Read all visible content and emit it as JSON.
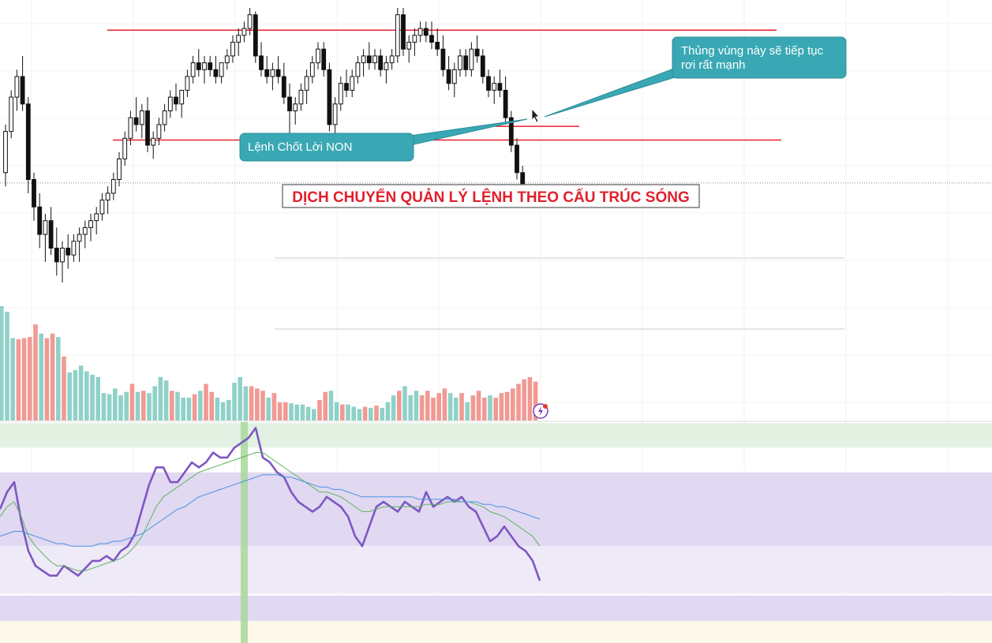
{
  "colors": {
    "candle": "#111111",
    "hline": "#e8202f",
    "callout_fill": "#3aa8b4",
    "callout_stroke": "#2b8c97",
    "title_text": "#e0202d",
    "vol_up": "#8fd1c8",
    "vol_down": "#f09a94",
    "rsi_line": "#7e57c2",
    "rsi_ma": "#5fb35f",
    "rsi_slow": "#4a90e2",
    "band_green": "#e3f1e3",
    "band_purple_dark": "#e0d9f1",
    "band_purple_light": "#eeeaf8",
    "band_yellow": "#fdf8e9",
    "highlight_bar": "#a8d89a",
    "badge": "#7b3fb8",
    "badge_dot": "#e53935"
  },
  "annotations": {
    "callout_left": "Lệnh Chốt Lời NON",
    "callout_right_line1": "Thủng vùng này sẽ tiếp tục",
    "callout_right_line2": "rơi rất mạnh",
    "title": "DỊCH CHUYỂN QUẢN LÝ LỆNH THEO CẤU TRÚC SÓNG"
  },
  "chart_data": [
    {
      "type": "candlestick",
      "title": "",
      "xlabel": "",
      "ylabel": "",
      "grid": true,
      "ylim": [
        0,
        100
      ],
      "horizontal_levels": [
        {
          "value": 93.5,
          "label": ""
        },
        {
          "value": 61.5,
          "label": ""
        },
        {
          "value": 65.5,
          "label": ""
        }
      ],
      "current_price_line": 49,
      "candles": [
        [
          52,
          66,
          48,
          64
        ],
        [
          64,
          76,
          62,
          74
        ],
        [
          74,
          82,
          70,
          80
        ],
        [
          80,
          86,
          70,
          72
        ],
        [
          72,
          74,
          46,
          50
        ],
        [
          50,
          52,
          38,
          42
        ],
        [
          42,
          46,
          30,
          34
        ],
        [
          34,
          40,
          26,
          38
        ],
        [
          38,
          42,
          28,
          30
        ],
        [
          30,
          36,
          22,
          26
        ],
        [
          26,
          32,
          20,
          30
        ],
        [
          30,
          34,
          24,
          28
        ],
        [
          28,
          34,
          26,
          32
        ],
        [
          32,
          36,
          26,
          34
        ],
        [
          34,
          38,
          30,
          36
        ],
        [
          36,
          40,
          32,
          38
        ],
        [
          38,
          42,
          34,
          40
        ],
        [
          40,
          46,
          38,
          44
        ],
        [
          44,
          48,
          40,
          46
        ],
        [
          46,
          52,
          44,
          50
        ],
        [
          50,
          58,
          48,
          56
        ],
        [
          56,
          64,
          54,
          62
        ],
        [
          62,
          70,
          60,
          68
        ],
        [
          68,
          74,
          64,
          66
        ],
        [
          66,
          72,
          62,
          70
        ],
        [
          70,
          74,
          58,
          60
        ],
        [
          60,
          64,
          56,
          62
        ],
        [
          62,
          68,
          60,
          66
        ],
        [
          66,
          72,
          64,
          70
        ],
        [
          70,
          76,
          68,
          74
        ],
        [
          74,
          78,
          70,
          72
        ],
        [
          72,
          76,
          68,
          76
        ],
        [
          76,
          82,
          74,
          80
        ],
        [
          80,
          86,
          78,
          84
        ],
        [
          84,
          88,
          80,
          82
        ],
        [
          82,
          86,
          78,
          84
        ],
        [
          84,
          86,
          80,
          82
        ],
        [
          82,
          86,
          78,
          80
        ],
        [
          80,
          84,
          78,
          84
        ],
        [
          84,
          88,
          82,
          86
        ],
        [
          86,
          92,
          84,
          90
        ],
        [
          90,
          94,
          86,
          92
        ],
        [
          92,
          96,
          90,
          94
        ],
        [
          94,
          100,
          92,
          98
        ],
        [
          98,
          99,
          84,
          86
        ],
        [
          86,
          90,
          80,
          82
        ],
        [
          82,
          86,
          78,
          80
        ],
        [
          80,
          84,
          76,
          82
        ],
        [
          82,
          86,
          78,
          80
        ],
        [
          80,
          84,
          72,
          74
        ],
        [
          74,
          78,
          62,
          70
        ],
        [
          70,
          74,
          66,
          72
        ],
        [
          72,
          78,
          70,
          76
        ],
        [
          76,
          82,
          72,
          80
        ],
        [
          80,
          86,
          78,
          84
        ],
        [
          84,
          90,
          82,
          88
        ],
        [
          88,
          90,
          80,
          82
        ],
        [
          82,
          84,
          64,
          66
        ],
        [
          66,
          74,
          60,
          72
        ],
        [
          72,
          80,
          70,
          78
        ],
        [
          78,
          82,
          74,
          76
        ],
        [
          76,
          82,
          74,
          80
        ],
        [
          80,
          86,
          78,
          84
        ],
        [
          84,
          88,
          80,
          86
        ],
        [
          86,
          90,
          82,
          84
        ],
        [
          84,
          88,
          82,
          86
        ],
        [
          86,
          88,
          80,
          82
        ],
        [
          82,
          86,
          78,
          84
        ],
        [
          84,
          88,
          82,
          86
        ],
        [
          86,
          100,
          84,
          98
        ],
        [
          98,
          100,
          86,
          88
        ],
        [
          88,
          92,
          84,
          90
        ],
        [
          90,
          94,
          86,
          92
        ],
        [
          92,
          96,
          90,
          94
        ],
        [
          94,
          96,
          90,
          92
        ],
        [
          92,
          96,
          88,
          90
        ],
        [
          90,
          94,
          86,
          88
        ],
        [
          88,
          92,
          80,
          82
        ],
        [
          82,
          86,
          76,
          78
        ],
        [
          78,
          84,
          74,
          82
        ],
        [
          82,
          88,
          80,
          86
        ],
        [
          86,
          88,
          80,
          82
        ],
        [
          82,
          90,
          80,
          88
        ],
        [
          88,
          92,
          84,
          86
        ],
        [
          86,
          88,
          78,
          80
        ],
        [
          80,
          82,
          74,
          76
        ],
        [
          76,
          80,
          72,
          78
        ],
        [
          78,
          82,
          74,
          76
        ],
        [
          76,
          80,
          66,
          68
        ],
        [
          68,
          70,
          58,
          60
        ],
        [
          60,
          62,
          50,
          52
        ],
        [
          52,
          54,
          44,
          46
        ]
      ]
    },
    {
      "type": "bar",
      "title": "",
      "xlabel": "",
      "ylabel": "",
      "series": [
        {
          "name": "",
          "values": [
            100,
            95,
            72,
            71,
            72,
            73,
            84,
            76,
            72,
            76,
            73,
            56,
            42,
            44,
            48,
            43,
            40,
            38,
            24,
            23,
            28,
            22,
            25,
            32,
            25,
            26,
            24,
            30,
            38,
            35,
            26,
            25,
            20,
            20,
            23,
            26,
            32,
            25,
            20,
            16,
            18,
            33,
            38,
            30,
            30,
            28,
            26,
            20,
            24,
            16,
            16,
            15,
            14,
            14,
            12,
            10,
            18,
            25,
            26,
            16,
            14,
            14,
            12,
            10,
            12,
            11,
            13,
            11,
            16,
            22,
            26,
            30,
            22,
            26,
            22,
            26,
            20,
            24,
            28,
            24,
            20,
            24,
            16,
            22,
            26,
            20,
            22,
            20,
            24,
            25,
            28,
            32,
            36,
            38,
            34
          ]
        }
      ]
    },
    {
      "type": "line",
      "title": "",
      "xlabel": "",
      "ylabel": "",
      "grid": true,
      "ylim": [
        0,
        100
      ],
      "bands": [
        {
          "from": 80,
          "to": 90
        },
        {
          "from": 40,
          "to": 70
        },
        {
          "from": 20,
          "to": 40
        },
        {
          "from": 0,
          "to": 20
        }
      ],
      "series": [
        {
          "name": "",
          "values": [
            55,
            62,
            66,
            50,
            38,
            32,
            30,
            28,
            28,
            32,
            30,
            28,
            31,
            34,
            34,
            36,
            34,
            38,
            40,
            45,
            55,
            65,
            72,
            72,
            66,
            66,
            70,
            74,
            72,
            74,
            78,
            76,
            76,
            80,
            82,
            84,
            88,
            76,
            74,
            70,
            68,
            62,
            58,
            56,
            54,
            56,
            60,
            58,
            56,
            52,
            44,
            40,
            48,
            56,
            58,
            56,
            54,
            58,
            56,
            54,
            62,
            56,
            58,
            60,
            58,
            60,
            56,
            54,
            48,
            42,
            44,
            48,
            44,
            40,
            38,
            34,
            26
          ]
        },
        {
          "name": "",
          "values": [
            52,
            56,
            58,
            52,
            44,
            40,
            37,
            34,
            32,
            32,
            31,
            30,
            30,
            31,
            32,
            33,
            34,
            35,
            37,
            40,
            44,
            50,
            56,
            60,
            62,
            64,
            66,
            68,
            70,
            71,
            72,
            73,
            74,
            75,
            76,
            77,
            78,
            78,
            76,
            74,
            72,
            70,
            68,
            66,
            64,
            62,
            62,
            61,
            60,
            58,
            56,
            54,
            54,
            55,
            56,
            56,
            56,
            56,
            56,
            56,
            57,
            57,
            57,
            58,
            58,
            58,
            58,
            57,
            56,
            54,
            53,
            52,
            50,
            48,
            46,
            44,
            40
          ]
        },
        {
          "name": "",
          "values": [
            44,
            45,
            46,
            46,
            45,
            44,
            43,
            42,
            41,
            41,
            40,
            40,
            40,
            40,
            41,
            41,
            42,
            42,
            43,
            44,
            45,
            47,
            49,
            51,
            53,
            55,
            56,
            58,
            60,
            61,
            62,
            63,
            64,
            65,
            66,
            67,
            68,
            69,
            69,
            69,
            68,
            68,
            67,
            66,
            65,
            64,
            64,
            63,
            63,
            62,
            61,
            60,
            60,
            60,
            60,
            60,
            60,
            60,
            60,
            59,
            59,
            59,
            59,
            59,
            59,
            58,
            58,
            58,
            57,
            57,
            56,
            56,
            55,
            54,
            53,
            52,
            51
          ]
        }
      ]
    }
  ]
}
